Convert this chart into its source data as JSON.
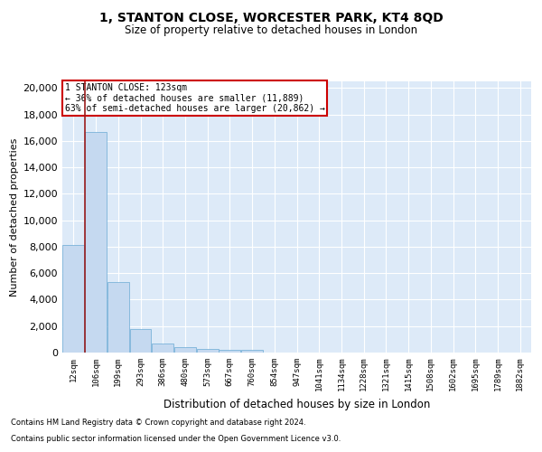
{
  "title": "1, STANTON CLOSE, WORCESTER PARK, KT4 8QD",
  "subtitle": "Size of property relative to detached houses in London",
  "xlabel": "Distribution of detached houses by size in London",
  "ylabel": "Number of detached properties",
  "bar_color": "#c5d9f0",
  "bar_edge_color": "#6aaad4",
  "vline_color": "#9b1c1c",
  "annotation_line1": "1 STANTON CLOSE: 123sqm",
  "annotation_line2": "← 36% of detached houses are smaller (11,889)",
  "annotation_line3": "63% of semi-detached houses are larger (20,862) →",
  "annotation_box_color": "#ffffff",
  "annotation_box_edge": "#cc0000",
  "footnote1": "Contains HM Land Registry data © Crown copyright and database right 2024.",
  "footnote2": "Contains public sector information licensed under the Open Government Licence v3.0.",
  "plot_bg_color": "#ddeaf8",
  "fig_bg_color": "#ffffff",
  "grid_color": "#ffffff",
  "ylim": [
    0,
    20500
  ],
  "bin_labels": [
    "12sqm",
    "106sqm",
    "199sqm",
    "293sqm",
    "386sqm",
    "480sqm",
    "573sqm",
    "667sqm",
    "760sqm",
    "854sqm",
    "947sqm",
    "1041sqm",
    "1134sqm",
    "1228sqm",
    "1321sqm",
    "1415sqm",
    "1508sqm",
    "1602sqm",
    "1695sqm",
    "1789sqm",
    "1882sqm"
  ],
  "bar_heights": [
    8100,
    16700,
    5300,
    1750,
    700,
    380,
    280,
    210,
    190,
    0,
    0,
    0,
    0,
    0,
    0,
    0,
    0,
    0,
    0,
    0,
    0
  ],
  "yticks": [
    0,
    2000,
    4000,
    6000,
    8000,
    10000,
    12000,
    14000,
    16000,
    18000,
    20000
  ],
  "vline_bar_index": 1
}
